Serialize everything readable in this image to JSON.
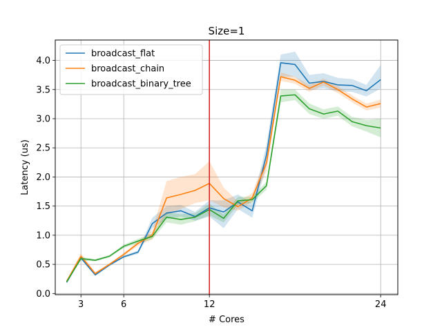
{
  "chart_data": {
    "type": "line",
    "title": "Size=1",
    "xlabel": "# Cores",
    "ylabel": "Latency (us)",
    "xlim": [
      1.2,
      25.2
    ],
    "ylim": [
      -0.02,
      4.35
    ],
    "xticks": [
      3,
      6,
      12,
      24
    ],
    "yticks": [
      0.0,
      0.5,
      1.0,
      1.5,
      2.0,
      2.5,
      3.0,
      3.5,
      4.0
    ],
    "ytick_labels": [
      "0.0",
      "0.5",
      "1.0",
      "1.5",
      "2.0",
      "2.5",
      "3.0",
      "3.5",
      "4.0"
    ],
    "grid": true,
    "legend_position": "top-left",
    "vline": {
      "x": 12,
      "color": "#d62728"
    },
    "x": [
      2,
      3,
      4,
      5,
      6,
      7,
      8,
      9,
      10,
      11,
      12,
      13,
      14,
      15,
      16,
      17,
      18,
      19,
      20,
      21,
      22,
      23,
      24
    ],
    "series": [
      {
        "name": "broadcast_flat",
        "color": "#1f77b4",
        "values": [
          0.19,
          0.61,
          0.32,
          0.49,
          0.63,
          0.71,
          1.2,
          1.38,
          1.42,
          1.32,
          1.47,
          1.4,
          1.57,
          1.42,
          2.38,
          3.96,
          3.93,
          3.61,
          3.64,
          3.58,
          3.57,
          3.48,
          3.67
        ],
        "band_low": [
          0.18,
          0.59,
          0.3,
          0.47,
          0.61,
          0.68,
          1.12,
          1.28,
          1.32,
          1.25,
          1.32,
          1.12,
          1.45,
          1.3,
          2.2,
          3.72,
          3.72,
          3.5,
          3.52,
          3.47,
          3.46,
          3.38,
          3.52
        ],
        "band_high": [
          0.2,
          0.63,
          0.34,
          0.51,
          0.65,
          0.74,
          1.3,
          1.5,
          1.52,
          1.4,
          1.6,
          1.6,
          1.7,
          1.55,
          2.55,
          4.1,
          4.15,
          3.75,
          3.78,
          3.7,
          3.68,
          3.58,
          3.92
        ]
      },
      {
        "name": "broadcast_chain",
        "color": "#ff7f0e",
        "values": [
          0.21,
          0.64,
          0.34,
          0.5,
          0.67,
          0.86,
          1.0,
          1.64,
          1.7,
          1.77,
          1.89,
          1.63,
          1.49,
          1.64,
          2.24,
          3.72,
          3.66,
          3.52,
          3.63,
          3.5,
          3.34,
          3.2,
          3.26
        ],
        "band_low": [
          0.2,
          0.6,
          0.32,
          0.48,
          0.64,
          0.82,
          0.93,
          1.35,
          1.45,
          1.55,
          1.6,
          1.48,
          1.42,
          1.57,
          2.1,
          3.65,
          3.6,
          3.46,
          3.57,
          3.44,
          3.28,
          3.14,
          3.19
        ],
        "band_high": [
          0.22,
          0.69,
          0.37,
          0.52,
          0.7,
          0.9,
          1.08,
          1.93,
          2.0,
          2.05,
          2.27,
          1.82,
          1.58,
          1.72,
          2.36,
          3.8,
          3.72,
          3.58,
          3.69,
          3.56,
          3.4,
          3.26,
          3.33
        ]
      },
      {
        "name": "broadcast_binary_tree",
        "color": "#2ca02c",
        "values": [
          0.2,
          0.6,
          0.57,
          0.64,
          0.81,
          0.9,
          0.98,
          1.31,
          1.27,
          1.31,
          1.44,
          1.29,
          1.59,
          1.61,
          1.85,
          3.39,
          3.41,
          3.17,
          3.08,
          3.13,
          2.95,
          2.88,
          2.84
        ],
        "band_low": [
          0.19,
          0.57,
          0.55,
          0.62,
          0.78,
          0.86,
          0.93,
          1.22,
          1.18,
          1.24,
          1.34,
          1.22,
          1.52,
          1.56,
          1.78,
          3.28,
          3.32,
          3.08,
          3.0,
          3.05,
          2.87,
          2.78,
          2.68
        ],
        "band_high": [
          0.21,
          0.63,
          0.59,
          0.66,
          0.84,
          0.94,
          1.03,
          1.4,
          1.36,
          1.38,
          1.54,
          1.36,
          1.66,
          1.66,
          1.92,
          3.5,
          3.5,
          3.26,
          3.16,
          3.21,
          3.03,
          2.98,
          3.0
        ]
      }
    ]
  }
}
